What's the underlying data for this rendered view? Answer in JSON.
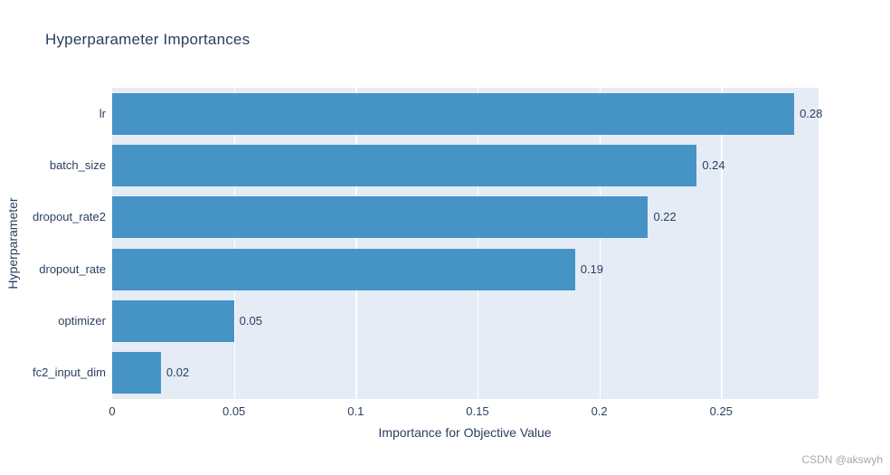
{
  "title": "Hyperparameter Importances",
  "watermark": "CSDN @akswyh",
  "colors": {
    "bar": "#4693c6",
    "plot_bg": "#e5ecf6",
    "grid": "#ffffff",
    "text": "#2a3f5f",
    "watermark": "#a9a9a9"
  },
  "chart_data": {
    "type": "bar",
    "orientation": "horizontal",
    "title": "Hyperparameter Importances",
    "xlabel": "Importance for Objective Value",
    "ylabel": "Hyperparameter",
    "categories": [
      "lr",
      "batch_size",
      "dropout_rate2",
      "dropout_rate",
      "optimizer",
      "fc2_input_dim"
    ],
    "values": [
      0.28,
      0.24,
      0.22,
      0.19,
      0.05,
      0.02
    ],
    "value_labels": [
      "0.28",
      "0.24",
      "0.22",
      "0.19",
      "0.05",
      "0.02"
    ],
    "xlim": [
      0,
      0.29
    ],
    "xticks": [
      0,
      0.05,
      0.1,
      0.15,
      0.2,
      0.25
    ],
    "xtick_labels": [
      "0",
      "0.05",
      "0.1",
      "0.15",
      "0.2",
      "0.25"
    ],
    "grid": true,
    "legend": false
  }
}
